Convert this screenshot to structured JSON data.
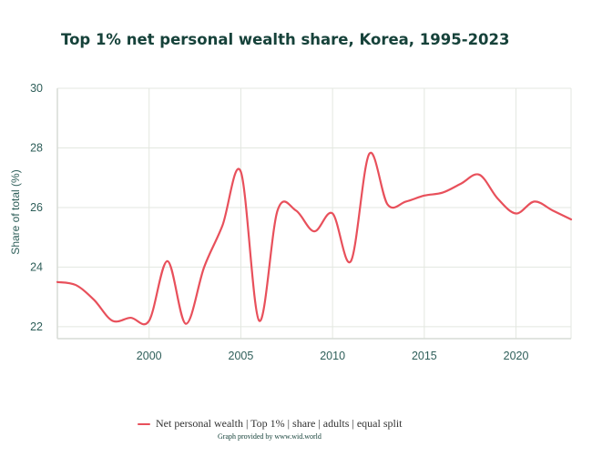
{
  "chart_data": {
    "type": "line",
    "title": "Top 1% net personal wealth share, Korea, 1995-2023",
    "ylabel": "Share of total (%)",
    "xlabel": "",
    "xlim": [
      1995,
      2023
    ],
    "ylim": [
      21.6,
      30
    ],
    "x_ticks": [
      2000,
      2005,
      2010,
      2015,
      2020
    ],
    "y_ticks": [
      22,
      24,
      26,
      28,
      30
    ],
    "grid": true,
    "legend_position": "bottom",
    "series": [
      {
        "name": "Net personal wealth | Top 1% | share | adults | equal split",
        "color": "#e8505b",
        "x": [
          1995,
          1996,
          1997,
          1998,
          1999,
          2000,
          2001,
          2002,
          2003,
          2004,
          2005,
          2006,
          2007,
          2008,
          2009,
          2010,
          2011,
          2012,
          2013,
          2014,
          2015,
          2016,
          2017,
          2018,
          2019,
          2020,
          2021,
          2022,
          2023
        ],
        "values": [
          23.5,
          23.4,
          22.9,
          22.2,
          22.3,
          22.2,
          24.2,
          22.1,
          24.0,
          25.4,
          27.2,
          22.2,
          25.9,
          25.9,
          25.2,
          25.8,
          24.2,
          27.8,
          26.1,
          26.2,
          26.4,
          26.5,
          26.8,
          27.1,
          26.3,
          25.8,
          26.2,
          25.9,
          25.6
        ]
      }
    ]
  },
  "credit": "Graph provided by www.wid.world"
}
